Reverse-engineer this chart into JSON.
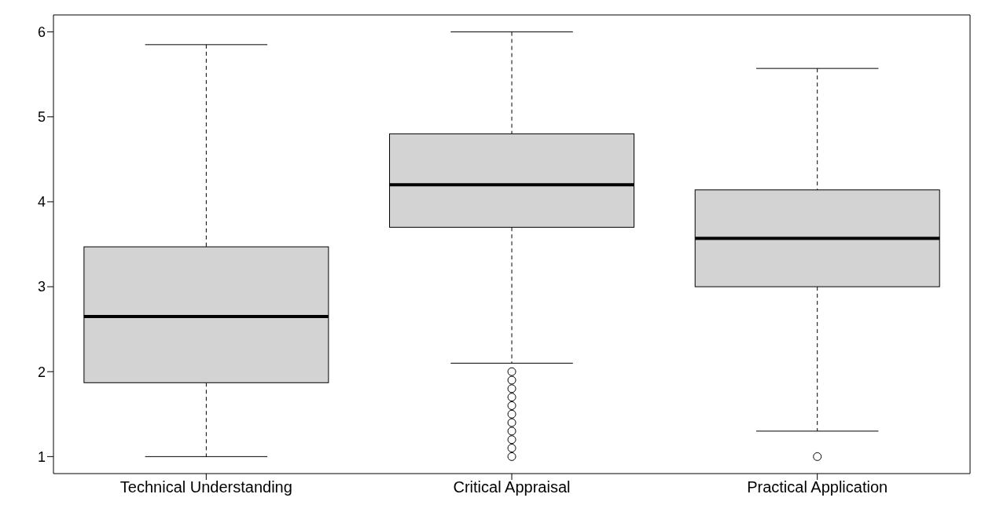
{
  "chart_data": {
    "type": "box",
    "categories": [
      "Technical Understanding",
      "Critical Appraisal",
      "Practical Application"
    ],
    "boxes": [
      {
        "low": 1.0,
        "q1": 1.87,
        "median": 2.65,
        "q3": 3.47,
        "high": 5.85
      },
      {
        "low": 2.1,
        "q1": 3.7,
        "median": 4.2,
        "q3": 4.8,
        "high": 6.0,
        "outliers": [
          2.0,
          1.9,
          1.8,
          1.7,
          1.6,
          1.5,
          1.4,
          1.3,
          1.2,
          1.1,
          1.0
        ]
      },
      {
        "low": 1.3,
        "q1": 3.0,
        "median": 3.57,
        "q3": 4.14,
        "high": 5.57,
        "outliers": [
          1.0
        ]
      }
    ],
    "color": "#d3d3d3",
    "ylim": [
      0.8,
      6.2
    ],
    "yticks": [
      1,
      2,
      3,
      4,
      5,
      6
    ]
  }
}
